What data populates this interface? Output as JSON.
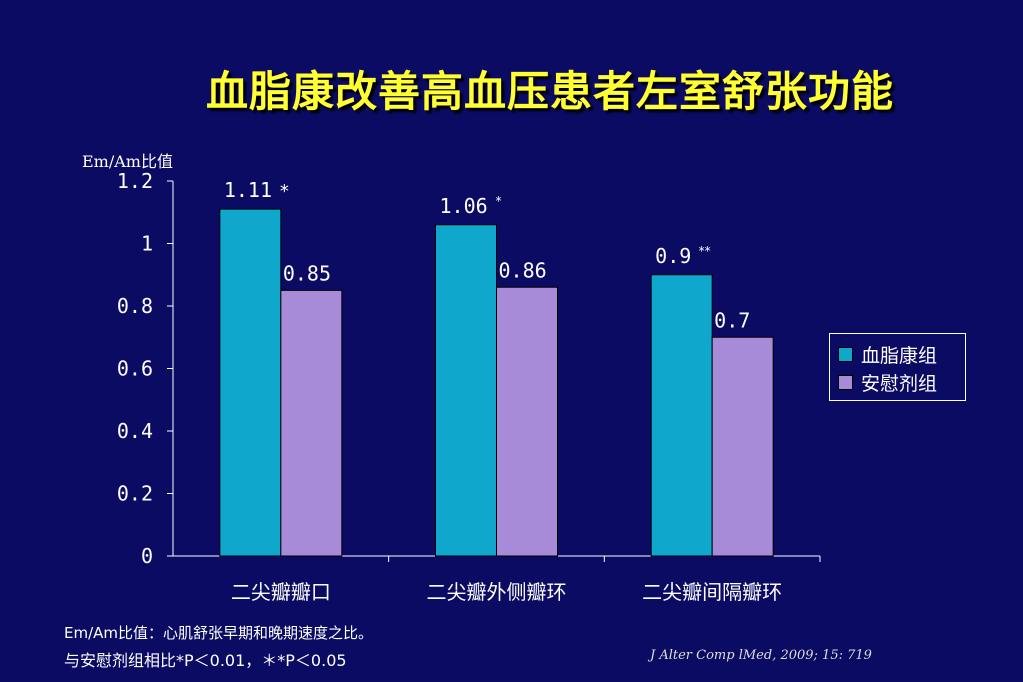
{
  "title": "血脂康改善高血压患者左室舒张功能",
  "chart_data": {
    "type": "bar",
    "ylabel": "Em/Am比值",
    "ylim": [
      0,
      1.2
    ],
    "yticks": [
      "0",
      "0.2",
      "0.4",
      "0.6",
      "0.8",
      "1",
      "1.2"
    ],
    "categories": [
      "二尖瓣瓣口",
      "二尖瓣外侧瓣环",
      "二尖瓣间隔瓣环"
    ],
    "series": [
      {
        "name": "血脂康组",
        "color": "#0fa8cc",
        "values": [
          1.11,
          1.06,
          0.9
        ],
        "labels": [
          "1.11",
          "1.06",
          "0.9"
        ],
        "marks": [
          "*",
          "*",
          "**"
        ]
      },
      {
        "name": "安慰剂组",
        "color": "#a78ad8",
        "values": [
          0.85,
          0.86,
          0.7
        ],
        "labels": [
          "0.85",
          "0.86",
          "0.7"
        ],
        "marks": [
          "",
          "",
          ""
        ]
      }
    ],
    "legend_position": "right",
    "grid": false
  },
  "footnotes": {
    "line1": "Em/Am比值：心肌舒张早期和晚期速度之比。",
    "line2": "与安慰剂组相比*P＜0.01，＊*P＜0.05"
  },
  "reference": "J Alter Comp lMed, 2009; 15: 719"
}
